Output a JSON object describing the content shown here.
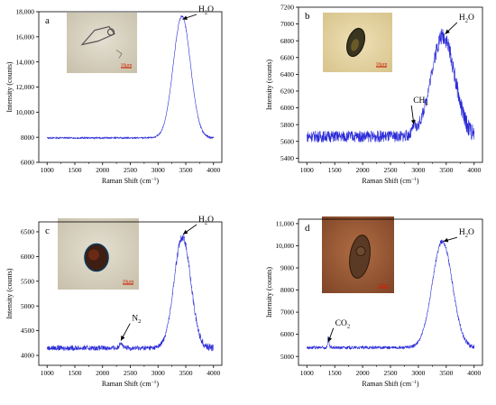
{
  "colors": {
    "series": "#2a2ad8",
    "axis": "#000000",
    "arrow": "#000000",
    "scalebar": "#cc2200"
  },
  "chart_data": [
    {
      "panel": "a",
      "type": "line",
      "xlabel": "Raman Shift (cm",
      "xlabel_sup": "−1",
      "xlabel_close": ")",
      "ylabel": "Intensity (counts)",
      "xlim": [
        850,
        4150
      ],
      "ylim": [
        6000,
        18000
      ],
      "xticks": [
        "1000",
        "1500",
        "2000",
        "2500",
        "3000",
        "3500",
        "4000"
      ],
      "yticks": [
        "6000",
        "8000",
        "10,000",
        "12,000",
        "14,000",
        "16,000",
        "18,000"
      ],
      "ytick_values": [
        6000,
        8000,
        10000,
        12000,
        14000,
        16000,
        18000
      ],
      "xtick_values": [
        1000,
        1500,
        2000,
        2500,
        3000,
        3500,
        4000
      ],
      "baseline": 7950,
      "noise": 60,
      "shoulders": [],
      "peaks": [
        {
          "x": 3430,
          "height": 9700,
          "sigma": 155
        }
      ],
      "annotations": [
        {
          "label": "H",
          "sub": "2",
          "tail": "O",
          "point": [
            3440,
            17400
          ],
          "text_at": [
            3760,
            18000
          ]
        }
      ],
      "micrograph": {
        "scalebar": "10μm",
        "tone": "pale"
      }
    },
    {
      "panel": "b",
      "type": "line",
      "xlabel": "Raman Shift (cm",
      "xlabel_sup": "−1",
      "xlabel_close": ")",
      "ylabel": "Intensity (counts)",
      "xlim": [
        850,
        4150
      ],
      "ylim": [
        5350,
        7200
      ],
      "xticks": [
        "1000",
        "1500",
        "2000",
        "2500",
        "3000",
        "3500",
        "4000"
      ],
      "yticks": [
        "5400",
        "5600",
        "5800",
        "6000",
        "6200",
        "6400",
        "6600",
        "6800",
        "7000",
        "7200"
      ],
      "ytick_values": [
        5400,
        5600,
        5800,
        6000,
        6200,
        6400,
        6600,
        6800,
        7000,
        7200
      ],
      "xtick_values": [
        1000,
        1500,
        2000,
        2500,
        3000,
        3500,
        4000
      ],
      "baseline": 5660,
      "noise": 70,
      "shoulders": [
        {
          "x": 2920,
          "height": 80,
          "sigma": 25
        }
      ],
      "peaks": [
        {
          "x": 3440,
          "height": 1200,
          "sigma": 210
        }
      ],
      "annotations": [
        {
          "label": "H",
          "sub": "2",
          "tail": "O",
          "point": [
            3480,
            6880
          ],
          "text_at": [
            3760,
            7050
          ]
        },
        {
          "label": "CH",
          "sub": "4",
          "tail": "",
          "point": [
            2920,
            5800
          ],
          "text_at": [
            2940,
            6060
          ]
        }
      ],
      "micrograph": {
        "scalebar": "10μm",
        "tone": "warm"
      }
    },
    {
      "panel": "c",
      "type": "line",
      "xlabel": "Raman Shift (cm",
      "xlabel_sup": "−1",
      "xlabel_close": ")",
      "ylabel": "Intensity (counts)",
      "xlim": [
        850,
        4150
      ],
      "ylim": [
        3800,
        6700
      ],
      "xticks": [
        "1000",
        "1500",
        "2000",
        "2500",
        "3000",
        "3500",
        "4000"
      ],
      "yticks": [
        "4000",
        "4500",
        "5000",
        "5500",
        "6000",
        "6500"
      ],
      "ytick_values": [
        4000,
        4500,
        5000,
        5500,
        6000,
        6500
      ],
      "xtick_values": [
        1000,
        1500,
        2000,
        2500,
        3000,
        3500,
        4000
      ],
      "baseline": 4150,
      "noise": 50,
      "shoulders": [
        {
          "x": 2330,
          "height": 120,
          "sigma": 25
        }
      ],
      "peaks": [
        {
          "x": 3440,
          "height": 2250,
          "sigma": 150
        }
      ],
      "annotations": [
        {
          "label": "H",
          "sub": "2",
          "tail": "O",
          "point": [
            3450,
            6450
          ],
          "text_at": [
            3760,
            6700
          ]
        },
        {
          "label": "N",
          "sub": "2",
          "tail": "",
          "point": [
            2330,
            4300
          ],
          "text_at": [
            2560,
            4700
          ]
        }
      ],
      "micrograph": {
        "scalebar": "10μm",
        "tone": "pale"
      }
    },
    {
      "panel": "d",
      "type": "line",
      "xlabel": "Raman Shift (cm",
      "xlabel_sup": "−1",
      "xlabel_close": ")",
      "ylabel": "Intensity (counts)",
      "xlim": [
        850,
        4150
      ],
      "ylim": [
        4600,
        11200
      ],
      "xticks": [
        "1000",
        "1500",
        "2000",
        "2500",
        "3000",
        "3500",
        "4000"
      ],
      "yticks": [
        "5000",
        "6000",
        "7000",
        "8000",
        "9000",
        "10,000",
        "11,000"
      ],
      "ytick_values": [
        5000,
        6000,
        7000,
        8000,
        9000,
        10000,
        11000
      ],
      "xtick_values": [
        1000,
        1500,
        2000,
        2500,
        3000,
        3500,
        4000
      ],
      "baseline": 5400,
      "noise": 70,
      "shoulders": [
        {
          "x": 1385,
          "height": 450,
          "sigma": 12
        }
      ],
      "peaks": [
        {
          "x": 3430,
          "height": 4800,
          "sigma": 180
        }
      ],
      "annotations": [
        {
          "label": "H",
          "sub": "2",
          "tail": "O",
          "point": [
            3450,
            10200
          ],
          "text_at": [
            3760,
            10500
          ]
        },
        {
          "label": "CO",
          "sub": "2",
          "tail": "",
          "point": [
            1385,
            5650
          ],
          "text_at": [
            1540,
            6400
          ]
        }
      ],
      "micrograph": {
        "scalebar": "10μm",
        "tone": "dark"
      }
    }
  ]
}
